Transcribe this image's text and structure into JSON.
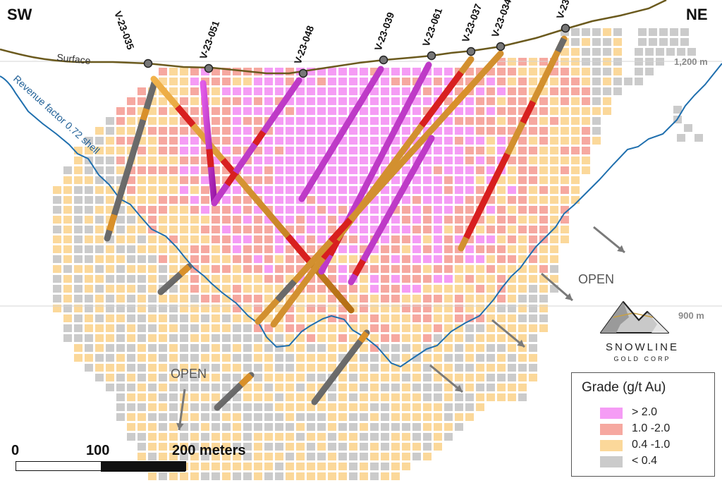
{
  "orientation": {
    "left": "SW",
    "right": "NE"
  },
  "surface_label": "Surface",
  "shell_label": "Revenue factor 0.72 shell",
  "elevations": [
    "1,200 m",
    "900 m"
  ],
  "open_labels": [
    "OPEN",
    "OPEN"
  ],
  "drillholes": [
    "V-23-035",
    "V-23-051",
    "V-23-048",
    "V-23-039",
    "V-23-061",
    "V-23-037",
    "V-23-034",
    "V-23"
  ],
  "legend": {
    "title": "Grade (g/t Au)",
    "items": [
      {
        "label": "> 2.0",
        "color": "#f59cf5"
      },
      {
        "label": "1.0 -2.0",
        "color": "#f6a8a0"
      },
      {
        "label": "0.4 -1.0",
        "color": "#fbd89a"
      },
      {
        "label": "< 0.4",
        "color": "#cbcbcb"
      }
    ]
  },
  "logo": {
    "name": "SNOWLINE",
    "subtitle": "GOLD CORP"
  },
  "scale_bar": {
    "ticks": [
      "0",
      "100",
      "200 meters"
    ]
  },
  "colors": {
    "surface": "#6b5a1e",
    "shell": "#1f6fae",
    "core_orange": "#d9902a",
    "core_red": "#d81f1f",
    "core_magenta": "#c42ad0",
    "core_grey": "#6a6a6a"
  }
}
